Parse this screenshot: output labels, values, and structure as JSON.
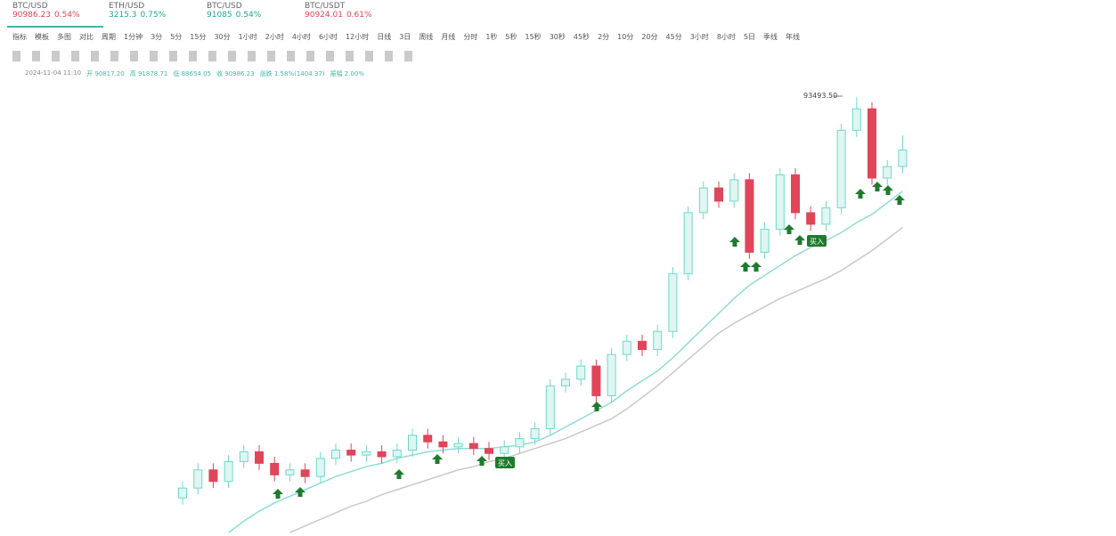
{
  "tabs": [
    {
      "symbol": "BTC/USD",
      "price": "90986.23",
      "change": "0.54%"
    },
    {
      "symbol": "ETH/USD",
      "price": "3215.3",
      "change": "0.75%"
    },
    {
      "symbol": "BTC/USD",
      "price": "91085",
      "change": "0.54%"
    },
    {
      "symbol": "BTC/USDT",
      "price": "90924.01",
      "change": "0.61%"
    }
  ],
  "toolbar": [
    "指标",
    "模板",
    "多图",
    "对比",
    "周期",
    "1分钟",
    "3分",
    "5分",
    "15分",
    "30分",
    "1小时",
    "2小时",
    "4小时",
    "6小时",
    "12小时",
    "日线",
    "3日",
    "周线",
    "月线",
    "分时",
    "1秒",
    "5秒",
    "15秒",
    "30秒",
    "45秒",
    "2分",
    "10分",
    "20分",
    "45分",
    "3小时",
    "8小时",
    "5日",
    "季线",
    "年线"
  ],
  "info": [
    "2024-11-04 11:10",
    "开 90817.20",
    "高 91878.71",
    "低 88654.05",
    "收 90986.23",
    "涨跌 1.58%(1404.37)",
    "振幅 2.00%"
  ],
  "chart_data": {
    "type": "candlestick",
    "ylim": [
      67000,
      94000
    ],
    "up_color": "#6fd9c8",
    "down_color": "#e0455a",
    "max_label": "93493.50",
    "signal_label": "买入",
    "ohlc": [
      [
        69200,
        70200,
        68800,
        69800
      ],
      [
        69800,
        71300,
        69400,
        70900
      ],
      [
        70900,
        71300,
        69800,
        70200
      ],
      [
        70200,
        71800,
        69800,
        71400
      ],
      [
        71400,
        72400,
        71000,
        72000
      ],
      [
        72000,
        72400,
        70900,
        71300
      ],
      [
        71300,
        71700,
        70200,
        70600
      ],
      [
        70600,
        71300,
        70200,
        70900
      ],
      [
        70900,
        71300,
        70100,
        70500
      ],
      [
        70500,
        72000,
        70100,
        71600
      ],
      [
        71600,
        72500,
        71200,
        72100
      ],
      [
        72100,
        72500,
        71400,
        71800
      ],
      [
        71800,
        72400,
        71400,
        72000
      ],
      [
        72000,
        72400,
        71300,
        71700
      ],
      [
        71700,
        72500,
        71300,
        72100
      ],
      [
        72100,
        73400,
        71700,
        73000
      ],
      [
        73000,
        73400,
        72200,
        72600
      ],
      [
        72600,
        73000,
        71900,
        72300
      ],
      [
        72300,
        72900,
        71900,
        72500
      ],
      [
        72500,
        72900,
        71800,
        72200
      ],
      [
        72200,
        72600,
        71500,
        71900
      ],
      [
        71900,
        72700,
        71500,
        72300
      ],
      [
        72300,
        73200,
        71900,
        72800
      ],
      [
        72800,
        73800,
        72400,
        73400
      ],
      [
        73400,
        76400,
        73000,
        76000
      ],
      [
        76000,
        76800,
        75600,
        76400
      ],
      [
        76400,
        77600,
        76000,
        77200
      ],
      [
        77200,
        77600,
        75000,
        75400
      ],
      [
        75400,
        78300,
        75000,
        77900
      ],
      [
        77900,
        79100,
        77500,
        78700
      ],
      [
        78700,
        79100,
        77800,
        78200
      ],
      [
        78200,
        79700,
        77800,
        79300
      ],
      [
        79300,
        83200,
        78900,
        82800
      ],
      [
        82800,
        86900,
        82400,
        86500
      ],
      [
        86500,
        88400,
        86100,
        88000
      ],
      [
        88000,
        88400,
        86800,
        87200
      ],
      [
        87200,
        88900,
        86800,
        88500
      ],
      [
        88500,
        88900,
        83700,
        84100
      ],
      [
        84100,
        85900,
        83700,
        85500
      ],
      [
        85500,
        89200,
        85100,
        88800
      ],
      [
        88800,
        89200,
        86100,
        86500
      ],
      [
        86500,
        86900,
        85400,
        85800
      ],
      [
        85800,
        87200,
        85400,
        86800
      ],
      [
        86800,
        91900,
        86400,
        91500
      ],
      [
        91500,
        93493.5,
        91100,
        92800
      ],
      [
        92800,
        93200,
        88200,
        88600
      ],
      [
        88600,
        89700,
        88200,
        89300
      ],
      [
        89300,
        91200,
        88900,
        90300
      ]
    ],
    "series": [
      {
        "color": "#8fdcd6",
        "values": [
          null,
          null,
          null,
          67100,
          67800,
          68400,
          68900,
          69300,
          69700,
          70100,
          70500,
          70800,
          71100,
          71300,
          71600,
          71800,
          72000,
          72100,
          72200,
          72200,
          72200,
          72300,
          72400,
          72600,
          73000,
          73500,
          74000,
          74500,
          75000,
          75700,
          76300,
          76900,
          77700,
          78600,
          79500,
          80400,
          81300,
          82100,
          82700,
          83300,
          83900,
          84400,
          84800,
          85300,
          85900,
          86400,
          87100,
          87800
        ]
      },
      {
        "color": "#c9c9c9",
        "values": [
          null,
          null,
          null,
          null,
          null,
          null,
          null,
          67100,
          67500,
          67900,
          68300,
          68700,
          69000,
          69400,
          69700,
          70000,
          70300,
          70600,
          70900,
          71100,
          71400,
          71600,
          71900,
          72200,
          72500,
          72800,
          73200,
          73600,
          74000,
          74600,
          75300,
          76000,
          76800,
          77600,
          78400,
          79200,
          79800,
          80300,
          80800,
          81300,
          81700,
          82100,
          82500,
          83000,
          83600,
          84200,
          84900,
          85600
        ]
      }
    ]
  }
}
